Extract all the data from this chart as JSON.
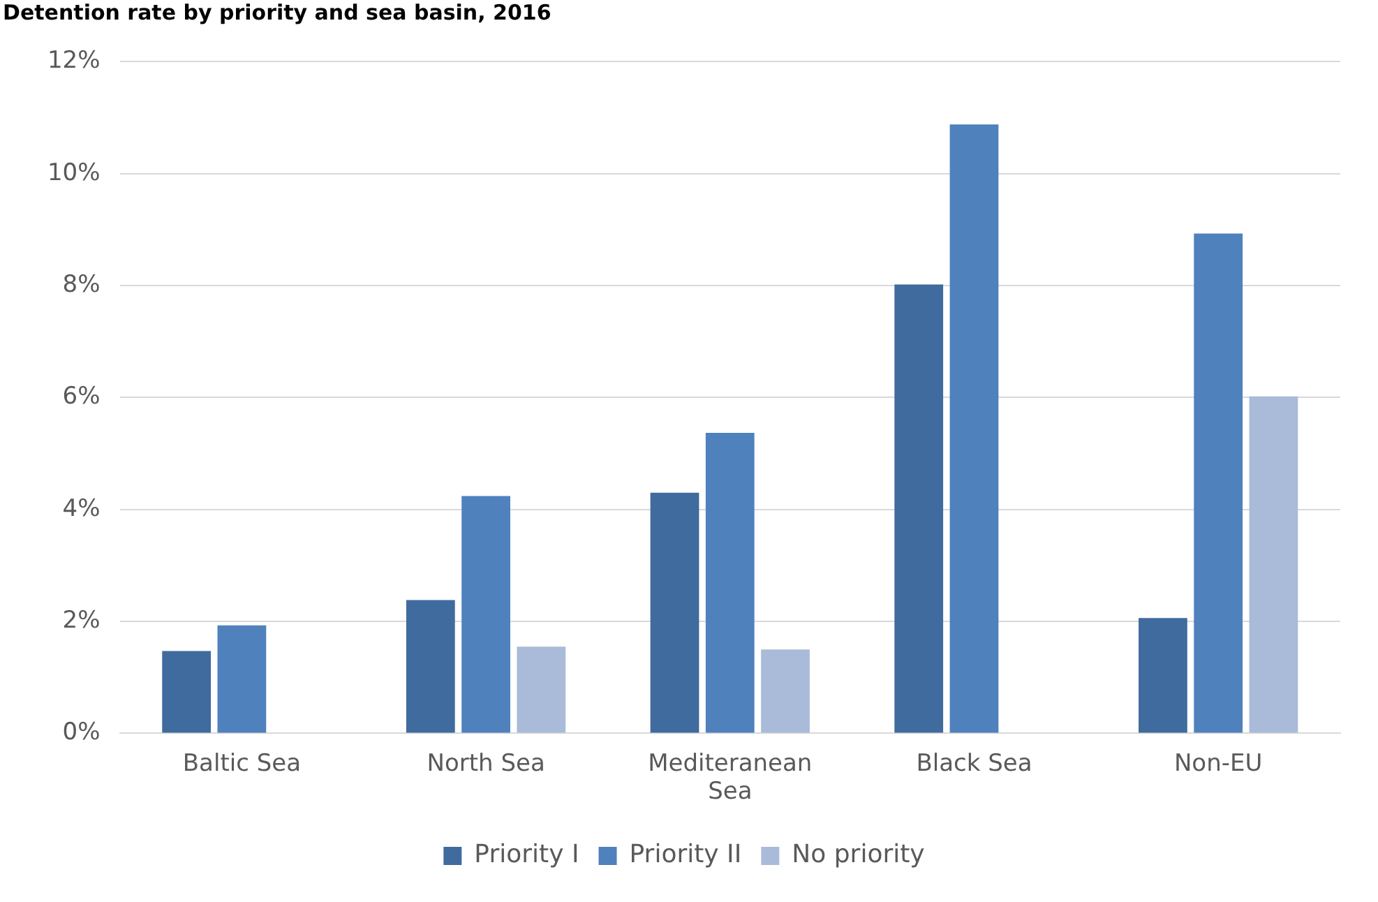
{
  "chart_data": {
    "type": "bar",
    "title": "Detention rate by priority and sea basin, 2016",
    "categories": [
      "Baltic Sea",
      "North Sea",
      "Mediteranean Sea",
      "Black Sea",
      "Non-EU"
    ],
    "series": [
      {
        "name": "Priority I",
        "color": "#3f6b9e",
        "values": [
          1.47,
          2.38,
          4.3,
          8.02,
          2.06
        ]
      },
      {
        "name": "Priority II",
        "color": "#4f81bd",
        "values": [
          1.93,
          4.24,
          5.37,
          10.88,
          8.93
        ]
      },
      {
        "name": "No priority",
        "color": "#a9bbd9",
        "values": [
          null,
          1.55,
          1.5,
          null,
          6.02
        ]
      }
    ],
    "ylim": [
      0,
      12
    ],
    "yticks": [
      {
        "value": 0,
        "label": "0%"
      },
      {
        "value": 2,
        "label": "2%"
      },
      {
        "value": 4,
        "label": "4%"
      },
      {
        "value": 6,
        "label": "6%"
      },
      {
        "value": 8,
        "label": "8%"
      },
      {
        "value": 10,
        "label": "10%"
      },
      {
        "value": 12,
        "label": "12%"
      }
    ],
    "grid": "y",
    "legend": "bottom"
  }
}
